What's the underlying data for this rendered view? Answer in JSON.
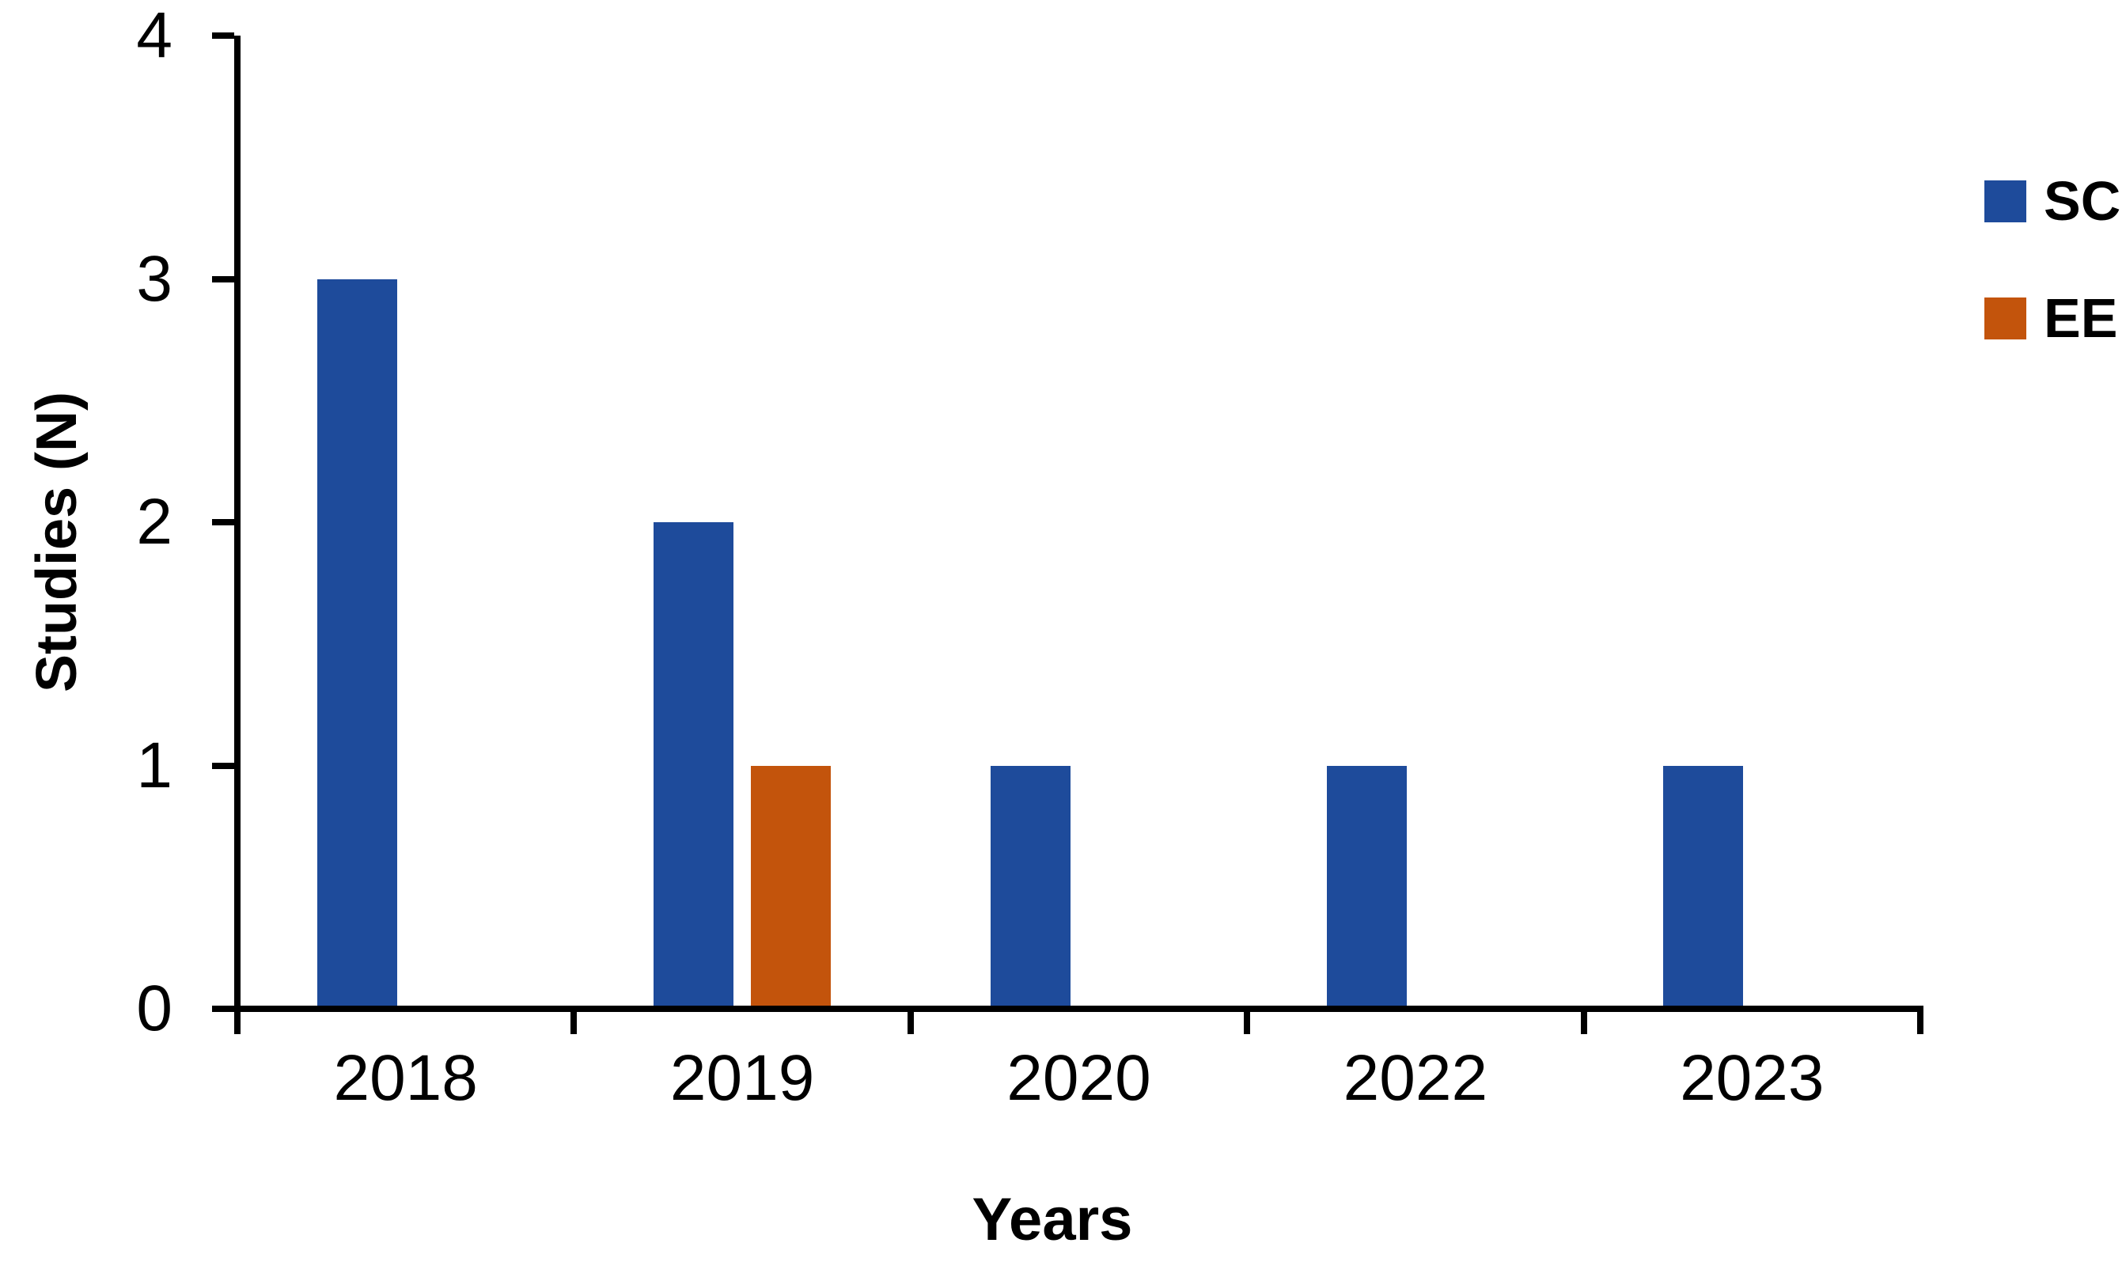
{
  "chart_data": {
    "type": "bar",
    "title": "",
    "categories": [
      "2018",
      "2019",
      "2020",
      "2022",
      "2023"
    ],
    "series": [
      {
        "name": "SC",
        "color": "#1E4B9B",
        "values": [
          3,
          2,
          1,
          1,
          1
        ]
      },
      {
        "name": "EE",
        "color": "#C3540C",
        "values": [
          0,
          1,
          0,
          0,
          0
        ]
      }
    ],
    "xlabel": "Years",
    "ylabel": "Studies (N)",
    "ylim": [
      0,
      4
    ],
    "yticks": [
      0,
      1,
      2,
      3,
      4
    ],
    "grid": false,
    "legend_position": "right",
    "background_color": "#ffffff",
    "axis_color": "#000000",
    "text_color": "#000000"
  }
}
